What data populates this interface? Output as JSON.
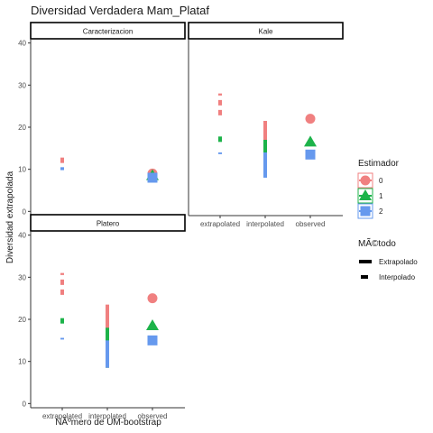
{
  "chart_data": {
    "type": "scatter",
    "title": "Diversidad Verdadera Mam_Plataf",
    "xlabel": "NÃºmero de UM-bootstrap",
    "ylabel": "Diversidad extrapolada",
    "categories": [
      "extrapolated",
      "interpolated",
      "observed"
    ],
    "yticks": [
      0,
      10,
      20,
      30,
      40
    ],
    "ylim": [
      -1,
      41
    ],
    "grid": false,
    "colors": {
      "0": "#f08080",
      "1": "#1db34a",
      "2": "#6699ee"
    },
    "legend": {
      "position": "right",
      "estimador_title": "Estimador",
      "estimador_items": [
        {
          "key": "0",
          "label": "0",
          "shape": "circle"
        },
        {
          "key": "1",
          "label": "1",
          "shape": "triangle"
        },
        {
          "key": "2",
          "label": "2",
          "shape": "square"
        }
      ],
      "metodo_title": "MÃ©todo",
      "metodo_items": [
        {
          "label": "Extrapolado",
          "linetype": "solid"
        },
        {
          "label": "Interpolado",
          "linetype": "dashed"
        }
      ]
    },
    "panels": [
      {
        "name": "Caracterizacion",
        "extrapolated": {
          "0": [
            11.5,
            12.8
          ],
          "1": null,
          "2": [
            9.8,
            10.5
          ]
        },
        "interpolated": null,
        "observed": {
          "0": 9.0,
          "1": 8.5,
          "2": 8.0
        }
      },
      {
        "name": "Kale",
        "extrapolated": {
          "0": [
            22.8,
            28.0
          ],
          "1": [
            16.5,
            18.0
          ],
          "2": [
            13.6,
            14.0
          ]
        },
        "interpolated": {
          "0": [
            8.0,
            21.5
          ],
          "1": [
            8.0,
            17.0
          ],
          "2": [
            8.0,
            14.0
          ]
        },
        "observed": {
          "0": 22.0,
          "1": 16.5,
          "2": 13.5
        }
      },
      {
        "name": "Platero",
        "extrapolated": {
          "0": [
            25.8,
            31.0
          ],
          "1": [
            19.0,
            20.8
          ],
          "2": [
            15.2,
            15.6
          ]
        },
        "interpolated": {
          "0": [
            8.5,
            23.5
          ],
          "1": [
            8.5,
            18.0
          ],
          "2": [
            8.5,
            15.0
          ]
        },
        "observed": {
          "0": 25.0,
          "1": 18.5,
          "2": 15.0
        }
      }
    ]
  }
}
